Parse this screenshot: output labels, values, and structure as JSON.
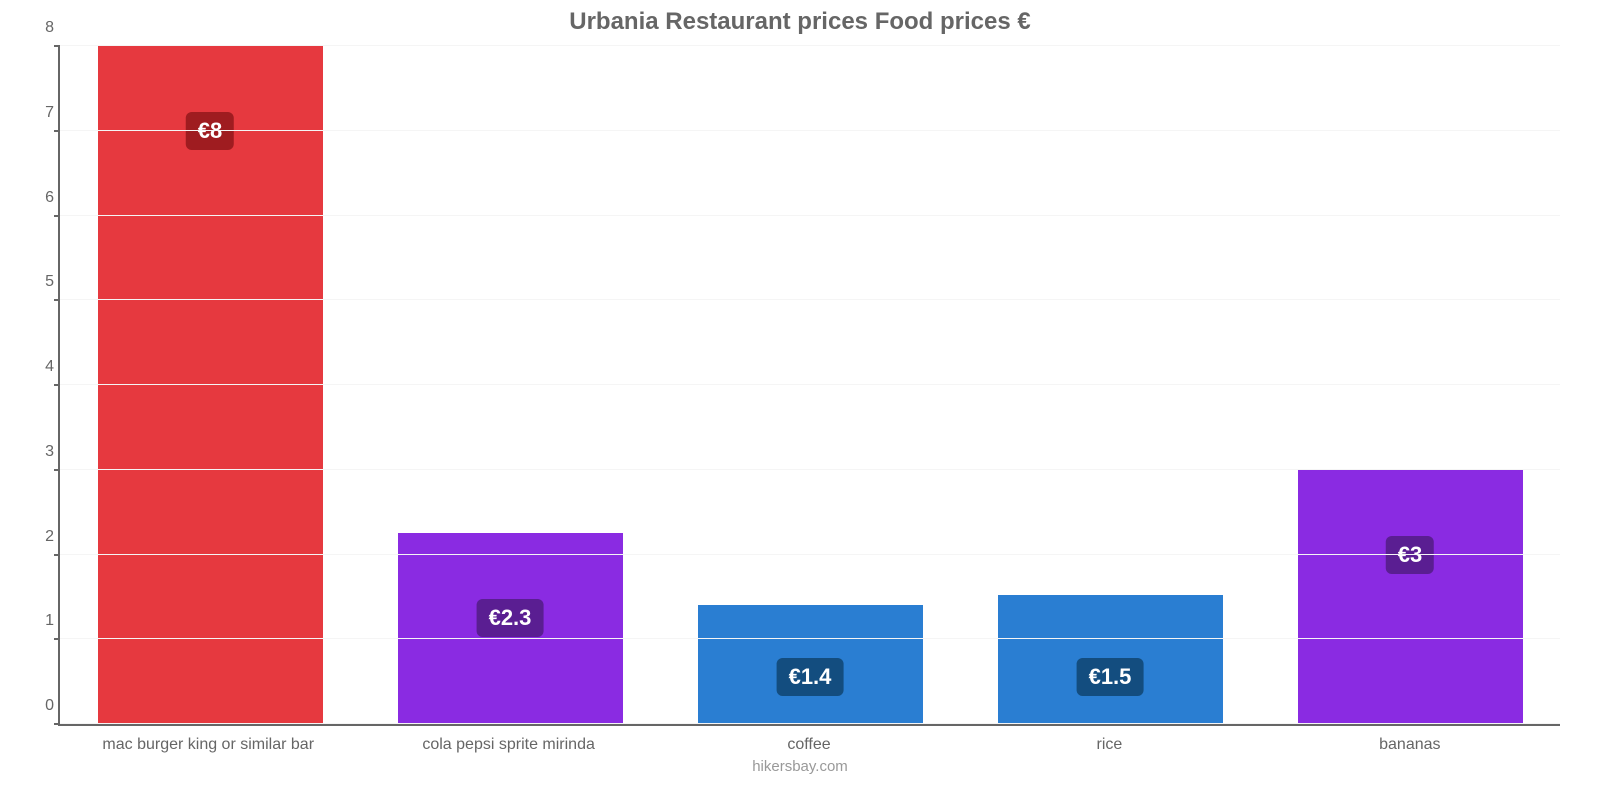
{
  "chart": {
    "type": "bar",
    "title": "Urbania Restaurant prices Food prices €",
    "title_fontsize": 24,
    "title_color": "#666666",
    "credit": "hikersbay.com",
    "credit_fontsize": 15,
    "credit_color": "#999999",
    "background_color": "#ffffff",
    "grid_color": "#f5f5f5",
    "axis_color": "#666666",
    "axis_width": 2,
    "ylim": [
      0,
      8
    ],
    "ytick_step": 1,
    "y_ticks": [
      "0",
      "1",
      "2",
      "3",
      "4",
      "5",
      "6",
      "7",
      "8"
    ],
    "ytick_fontsize": 16,
    "xlabel_fontsize": 16,
    "xlabel_color": "#666666",
    "bar_width_pct": 75,
    "bar_offset_pct": 12.5,
    "value_badge_fontsize": 22,
    "value_badge_radius": 6,
    "categories": [
      {
        "label": "mac burger king or similar bar",
        "value": 8.0,
        "value_label": "€8",
        "bar_color": "#e6393f",
        "badge_color": "#9f1c20"
      },
      {
        "label": "cola pepsi sprite mirinda",
        "value": 2.25,
        "value_label": "€2.3",
        "bar_color": "#8a2be2",
        "badge_color": "#5a1e92"
      },
      {
        "label": "coffee",
        "value": 1.4,
        "value_label": "€1.4",
        "bar_color": "#2a7ed2",
        "badge_color": "#134d7f"
      },
      {
        "label": "rice",
        "value": 1.52,
        "value_label": "€1.5",
        "bar_color": "#2a7ed2",
        "badge_color": "#134d7f"
      },
      {
        "label": "bananas",
        "value": 3.0,
        "value_label": "€3",
        "bar_color": "#8a2be2",
        "badge_color": "#5a1e92"
      }
    ]
  }
}
